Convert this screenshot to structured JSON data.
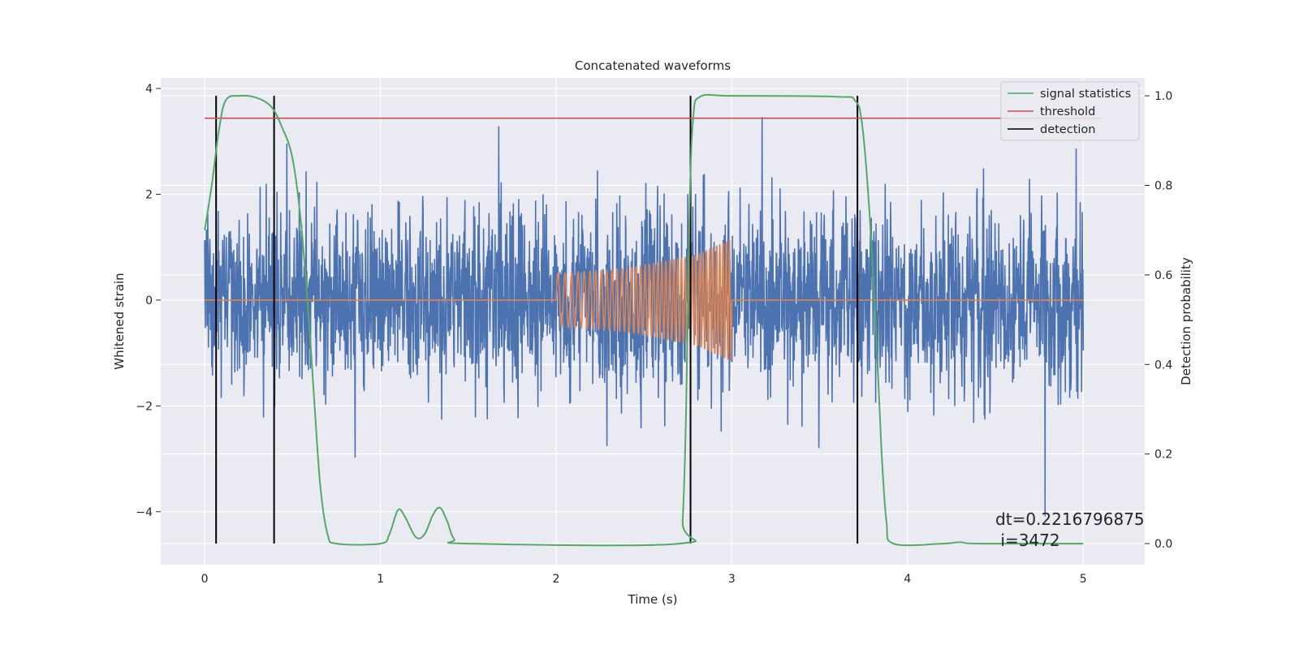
{
  "chart_data": {
    "type": "line",
    "title": "Concatenated waveforms",
    "xlabel": "Time (s)",
    "ylabel": "Whitened strain",
    "y2label": "Detection probability",
    "xlim": [
      -0.25,
      5.35
    ],
    "ylim": [
      -5.0,
      4.2
    ],
    "y2lim": [
      -0.047,
      1.04
    ],
    "x_ticks": [
      0,
      1,
      2,
      3,
      4,
      5
    ],
    "y_ticks": [
      -4,
      -2,
      0,
      2,
      4
    ],
    "y2_ticks": [
      0.0,
      0.2,
      0.4,
      0.6,
      0.8,
      1.0
    ],
    "grid": true,
    "legend": {
      "placement": "top-right",
      "entries": [
        {
          "label": "signal statistics",
          "color": "#55a868"
        },
        {
          "label": "threshold",
          "color": "#c44e52"
        },
        {
          "label": "detection",
          "color": "#000000"
        }
      ]
    },
    "series": [
      {
        "kind": "noise",
        "axis": "left",
        "color": "#4c72b0",
        "x_range": [
          0,
          5
        ],
        "approx_std": 0.85,
        "min_value": -4.65,
        "max_value": 3.45
      },
      {
        "kind": "chirp",
        "axis": "left",
        "color": "#dd8452",
        "x_range": [
          0,
          5
        ],
        "zero_outside": true,
        "points": [
          [
            2.0,
            0.5
          ],
          [
            2.4,
            0.6
          ],
          [
            2.8,
            0.85
          ],
          [
            3.0,
            1.15
          ]
        ]
      },
      {
        "name": "signal statistics",
        "axis": "right",
        "color": "#55a868",
        "points": [
          [
            0.0,
            0.7
          ],
          [
            0.04,
            0.8
          ],
          [
            0.08,
            0.92
          ],
          [
            0.12,
            0.99
          ],
          [
            0.2,
            1.0
          ],
          [
            0.3,
            0.995
          ],
          [
            0.38,
            0.975
          ],
          [
            0.44,
            0.93
          ],
          [
            0.5,
            0.86
          ],
          [
            0.55,
            0.71
          ],
          [
            0.6,
            0.46
          ],
          [
            0.63,
            0.28
          ],
          [
            0.66,
            0.12
          ],
          [
            0.7,
            0.02
          ],
          [
            0.75,
            0.0
          ],
          [
            1.0,
            0.0
          ],
          [
            1.05,
            0.02
          ],
          [
            1.1,
            0.075
          ],
          [
            1.14,
            0.06
          ],
          [
            1.2,
            0.015
          ],
          [
            1.25,
            0.02
          ],
          [
            1.3,
            0.065
          ],
          [
            1.34,
            0.08
          ],
          [
            1.38,
            0.05
          ],
          [
            1.42,
            0.01
          ],
          [
            1.5,
            0.0
          ],
          [
            2.7,
            0.0
          ],
          [
            2.72,
            0.05
          ],
          [
            2.74,
            0.3
          ],
          [
            2.76,
            0.75
          ],
          [
            2.78,
            0.95
          ],
          [
            2.82,
            0.998
          ],
          [
            3.0,
            1.0
          ],
          [
            3.6,
            0.998
          ],
          [
            3.7,
            0.99
          ],
          [
            3.74,
            0.94
          ],
          [
            3.78,
            0.76
          ],
          [
            3.82,
            0.48
          ],
          [
            3.85,
            0.22
          ],
          [
            3.88,
            0.05
          ],
          [
            3.92,
            0.0
          ],
          [
            4.2,
            0.0
          ],
          [
            4.3,
            0.003
          ],
          [
            4.4,
            0.0
          ],
          [
            5.0,
            0.0
          ]
        ]
      },
      {
        "name": "threshold",
        "axis": "right",
        "color": "#c44e52",
        "y": 0.95,
        "x_range": [
          0,
          5.1
        ]
      },
      {
        "name": "detection",
        "axis": "right",
        "color": "#000000",
        "x": [
          0.065,
          0.395,
          2.765,
          3.715
        ],
        "y_range": [
          0.0,
          1.0
        ]
      }
    ],
    "annotations": [
      {
        "text": "dt=0.2216796875",
        "x": 4.5,
        "y": -4.25
      },
      {
        "text": " i=3472",
        "x": 4.5,
        "y": -4.65
      }
    ]
  }
}
